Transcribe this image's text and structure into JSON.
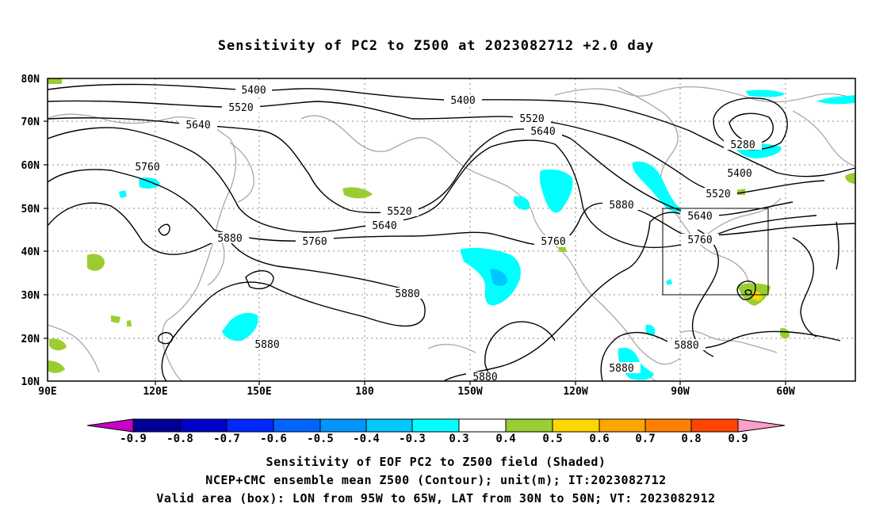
{
  "title": "Sensitivity of PC2 to Z500 at 2023082712 +2.0 day",
  "map": {
    "lon_ticks": [
      "90E",
      "120E",
      "150E",
      "180",
      "150W",
      "120W",
      "90W",
      "60W"
    ],
    "lat_ticks": [
      "80N",
      "70N",
      "60N",
      "50N",
      "40N",
      "30N",
      "20N",
      "10N"
    ],
    "contour_labels": [
      "5400",
      "5520",
      "5640",
      "5760",
      "5880",
      "5280"
    ],
    "valid_box": {
      "lon_from": "95W",
      "lon_to": "65W",
      "lat_from": "30N",
      "lat_to": "50N"
    },
    "colors": {
      "contour": "#000000",
      "coast": "#a0a0a0",
      "grid": "#8a8a8a",
      "positive_shade": "#9acd32",
      "negative_shade": "#00ffff"
    }
  },
  "colorbar": {
    "labels": [
      "-0.9",
      "-0.8",
      "-0.7",
      "-0.6",
      "-0.5",
      "-0.4",
      "-0.3",
      "0.3",
      "0.4",
      "0.5",
      "0.6",
      "0.7",
      "0.8",
      "0.9"
    ],
    "colors": [
      "#c800c8",
      "#000096",
      "#0000c8",
      "#0028ff",
      "#0064ff",
      "#0096ff",
      "#00c8ff",
      "#00ffff",
      "#ffffff",
      "#9acd32",
      "#ffd700",
      "#ffa500",
      "#ff7f00",
      "#ff4500",
      "#ff0000",
      "#ff9ec8"
    ]
  },
  "footer": {
    "line1": "Sensitivity of EOF PC2 to Z500 field (Shaded)",
    "line2": "NCEP+CMC ensemble mean Z500 (Contour); unit(m); IT:2023082712",
    "line3": "Valid area (box): LON from 95W to 65W, LAT from 30N to 50N; VT: 2023082912"
  }
}
